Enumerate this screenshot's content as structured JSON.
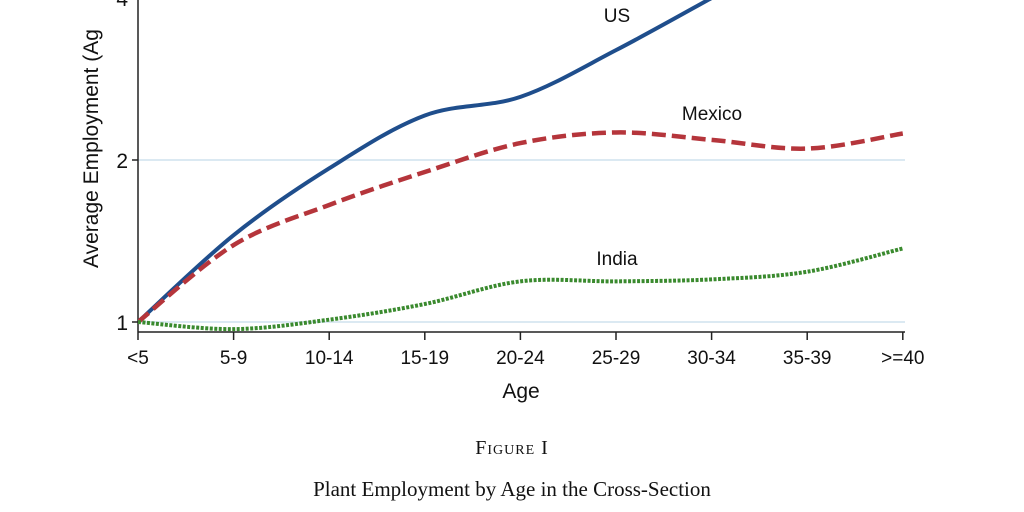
{
  "figure": {
    "label": "Figure I",
    "title": "Plant Employment by Age in the Cross-Section"
  },
  "chart_data": {
    "type": "line",
    "title": "",
    "xlabel": "Age",
    "ylabel": "Average Employment (Ag",
    "y_scale": "log",
    "ylim": [
      0.95,
      4
    ],
    "y_ticks": [
      1,
      2,
      4
    ],
    "y_tick_labels": [
      "1",
      "2",
      "4"
    ],
    "grid": true,
    "categories": [
      "<5",
      "5-9",
      "10-14",
      "15-19",
      "20-24",
      "25-29",
      "30-34",
      "35-39",
      ">=40"
    ],
    "series": [
      {
        "name": "US",
        "color": "#1f4e8c",
        "style": "solid",
        "values": [
          1,
          1.45,
          1.93,
          2.42,
          2.62,
          3.2,
          4.0,
          null,
          null
        ]
      },
      {
        "name": "Mexico",
        "color": "#b5353b",
        "style": "dashed",
        "values": [
          1,
          1.39,
          1.65,
          1.9,
          2.15,
          2.25,
          2.18,
          2.1,
          2.24
        ]
      },
      {
        "name": "India",
        "color": "#3a8a2e",
        "style": "dotted",
        "values": [
          1,
          0.97,
          1.01,
          1.08,
          1.19,
          1.19,
          1.2,
          1.24,
          1.37
        ]
      }
    ]
  }
}
